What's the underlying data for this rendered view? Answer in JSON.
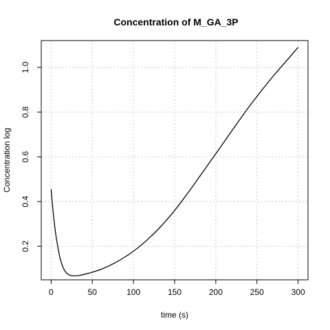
{
  "chart_data": {
    "type": "line",
    "title": "Concentration of M_GA_3P",
    "xlabel": "time (s)",
    "ylabel": "Concentration log",
    "xlim": [
      -12,
      312
    ],
    "ylim": [
      0.05,
      1.12
    ],
    "xticks": [
      0,
      50,
      100,
      150,
      200,
      250,
      300
    ],
    "yticks": [
      0.2,
      0.4,
      0.6,
      0.8,
      1.0
    ],
    "ytick_labels": [
      "0.2",
      "0.4",
      "0.6",
      "0.8",
      "1.0"
    ],
    "grid": true,
    "series": [
      {
        "color": "#000000",
        "x": [
          0,
          2,
          5,
          8,
          11,
          14,
          17,
          20,
          23,
          26,
          30,
          35,
          40,
          50,
          60,
          70,
          80,
          90,
          100,
          110,
          120,
          130,
          140,
          150,
          160,
          170,
          180,
          190,
          200,
          210,
          220,
          230,
          240,
          250,
          260,
          270,
          280,
          290,
          300
        ],
        "y": [
          0.455,
          0.37,
          0.27,
          0.2,
          0.145,
          0.11,
          0.088,
          0.076,
          0.07,
          0.068,
          0.068,
          0.07,
          0.074,
          0.084,
          0.096,
          0.112,
          0.131,
          0.153,
          0.178,
          0.207,
          0.24,
          0.276,
          0.316,
          0.36,
          0.408,
          0.458,
          0.51,
          0.562,
          0.614,
          0.666,
          0.719,
          0.771,
          0.822,
          0.87,
          0.917,
          0.962,
          1.005,
          1.047,
          1.09
        ]
      }
    ]
  }
}
